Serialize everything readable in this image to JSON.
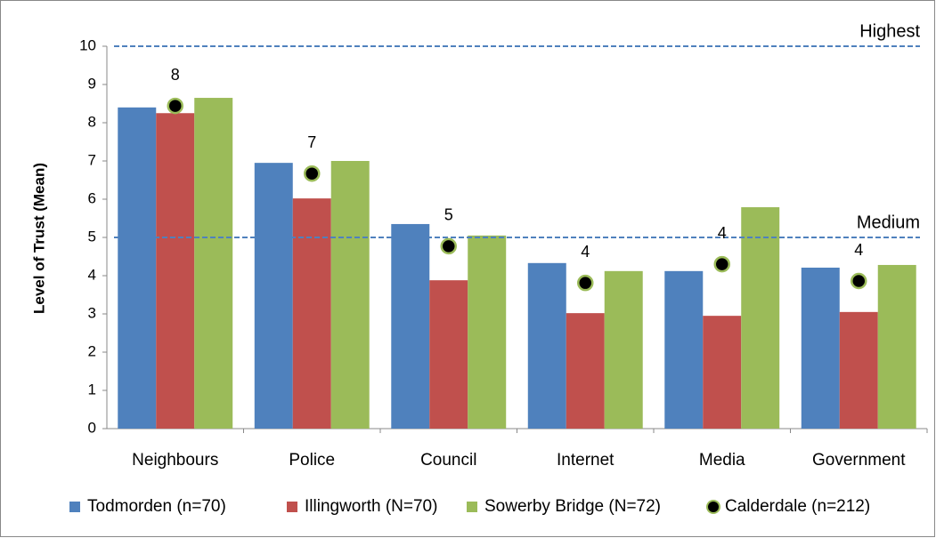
{
  "chart_data": {
    "type": "bar",
    "y_label": "Level of Trust (Mean)",
    "categories": [
      "Neighbours",
      "Police",
      "Council",
      "Internet",
      "Media",
      "Government"
    ],
    "series": [
      {
        "name": "Todmorden (n=70)",
        "color": "#4f81bd",
        "values": [
          8.4,
          6.95,
          5.35,
          4.33,
          4.12,
          4.21
        ]
      },
      {
        "name": "Illingworth (N=70)",
        "color": "#c0504d",
        "values": [
          8.25,
          6.02,
          3.88,
          3.02,
          2.95,
          3.05
        ]
      },
      {
        "name": "Sowerby Bridge (N=72)",
        "color": "#9bbb59",
        "values": [
          8.65,
          7.0,
          5.05,
          4.12,
          5.79,
          4.28
        ]
      },
      {
        "name": "Calderdale (n=212)",
        "type": "scatter",
        "color": "#000000",
        "edge_color": "#9bbb59",
        "values": [
          8.44,
          6.67,
          4.77,
          3.81,
          4.3,
          3.86
        ],
        "value_labels": [
          "8",
          "7",
          "5",
          "4",
          "4",
          "4"
        ]
      }
    ],
    "reference_lines": [
      {
        "label": "Highest",
        "value": 10,
        "color": "#4f81bd"
      },
      {
        "label": "Medium",
        "value": 5,
        "color": "#4f81bd"
      }
    ],
    "ylim": [
      0,
      10
    ],
    "yticks": [
      0,
      1,
      2,
      3,
      4,
      5,
      6,
      7,
      8,
      9,
      10
    ],
    "grid": false,
    "legend": "bottom"
  }
}
